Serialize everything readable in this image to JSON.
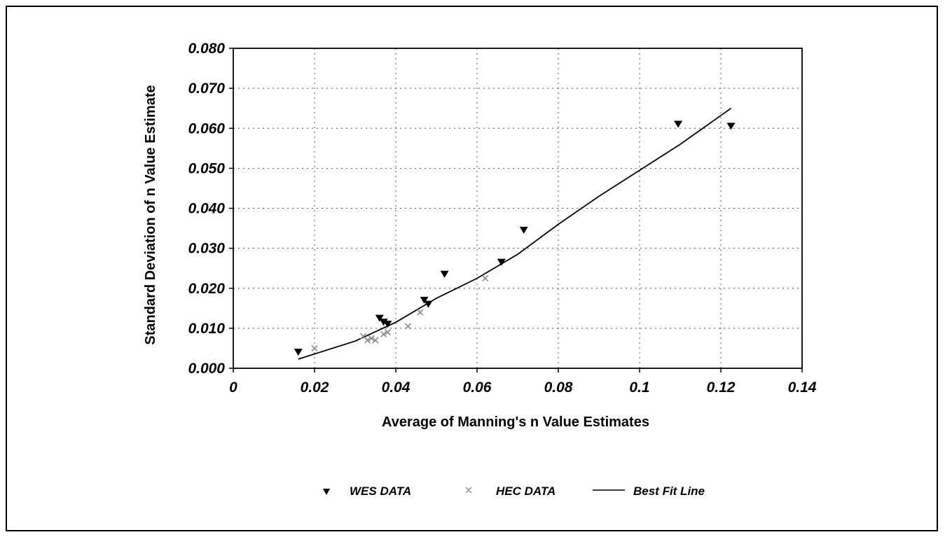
{
  "chart_data": {
    "type": "scatter",
    "xlabel": "Average of Manning's n Value Estimates",
    "ylabel": "Standard Deviation of n Value Estimate",
    "xlim": [
      0,
      0.14
    ],
    "ylim": [
      0,
      0.08
    ],
    "x_ticks": [
      "0",
      "0.02",
      "0.04",
      "0.06",
      "0.08",
      "0.1",
      "0.12",
      "0.14"
    ],
    "y_ticks": [
      "0.000",
      "0.010",
      "0.020",
      "0.030",
      "0.040",
      "0.050",
      "0.060",
      "0.070",
      "0.080"
    ],
    "grid": "dotted",
    "legend_position": "bottom",
    "series": [
      {
        "name": "WES DATA",
        "marker": "triangle-down",
        "color": "#000000",
        "points": [
          [
            0.016,
            0.004
          ],
          [
            0.036,
            0.0125
          ],
          [
            0.037,
            0.0115
          ],
          [
            0.038,
            0.011
          ],
          [
            0.047,
            0.017
          ],
          [
            0.048,
            0.016
          ],
          [
            0.052,
            0.0235
          ],
          [
            0.066,
            0.0265
          ],
          [
            0.0715,
            0.0345
          ],
          [
            0.1095,
            0.061
          ],
          [
            0.1225,
            0.0605
          ]
        ]
      },
      {
        "name": "HEC DATA",
        "marker": "x-gray",
        "color": "#8a8a8a",
        "points": [
          [
            0.02,
            0.005
          ],
          [
            0.032,
            0.008
          ],
          [
            0.033,
            0.007
          ],
          [
            0.034,
            0.0075
          ],
          [
            0.035,
            0.007
          ],
          [
            0.037,
            0.0085
          ],
          [
            0.038,
            0.009
          ],
          [
            0.043,
            0.0105
          ],
          [
            0.046,
            0.014
          ],
          [
            0.062,
            0.0225
          ]
        ]
      },
      {
        "name": "Best Fit Line",
        "type": "line",
        "color": "#000000",
        "points": [
          [
            0.016,
            0.0023
          ],
          [
            0.03,
            0.0068
          ],
          [
            0.04,
            0.0115
          ],
          [
            0.05,
            0.0175
          ],
          [
            0.06,
            0.0225
          ],
          [
            0.07,
            0.0285
          ],
          [
            0.08,
            0.036
          ],
          [
            0.09,
            0.043
          ],
          [
            0.1,
            0.0495
          ],
          [
            0.11,
            0.056
          ],
          [
            0.1225,
            0.065
          ]
        ]
      }
    ]
  }
}
